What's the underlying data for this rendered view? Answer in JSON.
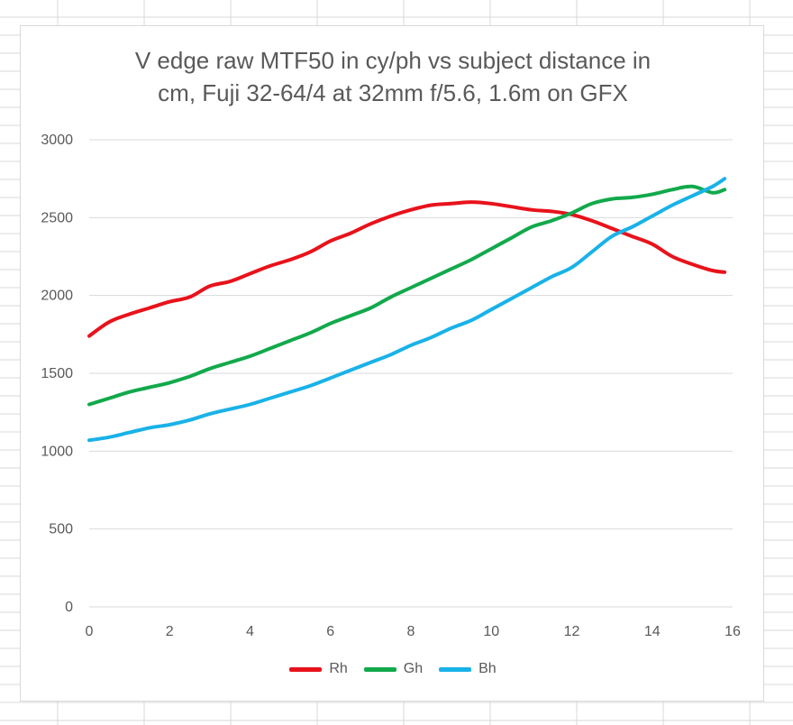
{
  "colors": {
    "Rh": "#e8121b",
    "Gh": "#12a94b",
    "Bh": "#19b2e8",
    "gridline": "#d9d9d9",
    "text": "#595959"
  },
  "chart_data": {
    "type": "line",
    "title": "V edge raw MTF50 in cy/ph vs subject distance in\ncm, Fuji 32-64/4 at 32mm f/5.6, 1.6m on GFX",
    "xlabel": "",
    "ylabel": "",
    "xlim": [
      0,
      16
    ],
    "ylim": [
      0,
      3000
    ],
    "xticks": [
      "0",
      "2",
      "4",
      "6",
      "8",
      "10",
      "12",
      "14",
      "16"
    ],
    "yticks": [
      "0",
      "500",
      "1000",
      "1500",
      "2000",
      "2500",
      "3000"
    ],
    "grid": "horizontal",
    "legend_position": "bottom",
    "series": [
      {
        "name": "Rh",
        "color_key": "Rh",
        "x": [
          0,
          0.5,
          1,
          1.5,
          2,
          2.5,
          3,
          3.5,
          4,
          4.5,
          5,
          5.5,
          6,
          6.5,
          7,
          7.5,
          8,
          8.5,
          9,
          9.5,
          10,
          10.5,
          11,
          11.5,
          12,
          12.5,
          13,
          13.5,
          14,
          14.5,
          15,
          15.5,
          15.8
        ],
        "y": [
          1740,
          1830,
          1880,
          1920,
          1960,
          1990,
          2060,
          2090,
          2140,
          2190,
          2230,
          2280,
          2350,
          2400,
          2460,
          2510,
          2550,
          2580,
          2590,
          2600,
          2590,
          2570,
          2550,
          2540,
          2520,
          2480,
          2430,
          2380,
          2330,
          2250,
          2200,
          2160,
          2150
        ]
      },
      {
        "name": "Gh",
        "color_key": "Gh",
        "x": [
          0,
          0.5,
          1,
          1.5,
          2,
          2.5,
          3,
          3.5,
          4,
          4.5,
          5,
          5.5,
          6,
          6.5,
          7,
          7.5,
          8,
          8.5,
          9,
          9.5,
          10,
          10.5,
          11,
          11.5,
          12,
          12.5,
          13,
          13.5,
          14,
          14.5,
          15,
          15.5,
          15.8
        ],
        "y": [
          1300,
          1340,
          1380,
          1410,
          1440,
          1480,
          1530,
          1570,
          1610,
          1660,
          1710,
          1760,
          1820,
          1870,
          1920,
          1990,
          2050,
          2110,
          2170,
          2230,
          2300,
          2370,
          2440,
          2480,
          2530,
          2590,
          2620,
          2630,
          2650,
          2680,
          2700,
          2660,
          2680
        ]
      },
      {
        "name": "Bh",
        "color_key": "Bh",
        "x": [
          0,
          0.5,
          1,
          1.5,
          2,
          2.5,
          3,
          3.5,
          4,
          4.5,
          5,
          5.5,
          6,
          6.5,
          7,
          7.5,
          8,
          8.5,
          9,
          9.5,
          10,
          10.5,
          11,
          11.5,
          12,
          12.5,
          13,
          13.5,
          14,
          14.5,
          15,
          15.5,
          15.8
        ],
        "y": [
          1070,
          1090,
          1120,
          1150,
          1170,
          1200,
          1240,
          1270,
          1300,
          1340,
          1380,
          1420,
          1470,
          1520,
          1570,
          1620,
          1680,
          1730,
          1790,
          1840,
          1910,
          1980,
          2050,
          2120,
          2180,
          2280,
          2380,
          2440,
          2510,
          2580,
          2640,
          2700,
          2750
        ]
      }
    ]
  }
}
